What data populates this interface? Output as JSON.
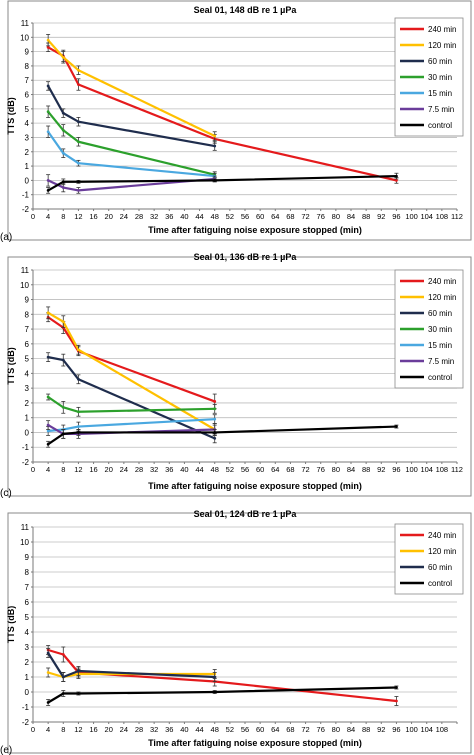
{
  "chart_data": [
    {
      "type": "line",
      "panel_label": "(a)",
      "title": "Seal 01, 148 dB re 1 µPa",
      "xlabel": "Time after fatiguing noise exposure stopped (min)",
      "ylabel": "TTS (dB)",
      "xlim": [
        0,
        112
      ],
      "ylim": [
        -2,
        11
      ],
      "xticks": [
        0,
        4,
        8,
        12,
        16,
        20,
        24,
        28,
        32,
        36,
        40,
        44,
        48,
        52,
        56,
        60,
        64,
        68,
        72,
        76,
        80,
        84,
        88,
        92,
        96,
        100,
        104,
        108,
        112
      ],
      "xtick_labels": [
        "0",
        "4",
        "8",
        "12",
        "16",
        "20",
        "24",
        "28",
        "32",
        "36",
        "40",
        "44",
        "48",
        "52",
        "56",
        "60",
        "64",
        "68",
        "72",
        "76",
        "80",
        "84",
        "88",
        "92",
        "96",
        "100",
        "104",
        "108",
        "112"
      ],
      "yticks": [
        -2,
        -1,
        0,
        1,
        2,
        3,
        4,
        5,
        6,
        7,
        8,
        9,
        10,
        11
      ],
      "grid": true,
      "legend_position": "top-right",
      "series": [
        {
          "name": "240 min",
          "color": "#e41a1c",
          "x": [
            4,
            8,
            12,
            48,
            96
          ],
          "y": [
            9.3,
            8.7,
            6.7,
            2.9,
            0.0
          ],
          "err": [
            0.3,
            0.4,
            0.4,
            0.3,
            0.2
          ]
        },
        {
          "name": "120 min",
          "color": "#ffc000",
          "x": [
            4,
            8,
            12,
            48
          ],
          "y": [
            9.8,
            8.6,
            7.7,
            3.1
          ],
          "err": [
            0.4,
            0.4,
            0.3,
            0.3
          ]
        },
        {
          "name": "60 min",
          "color": "#1f2d4d",
          "x": [
            4,
            8,
            12,
            48
          ],
          "y": [
            6.6,
            4.7,
            4.1,
            2.4
          ],
          "err": [
            0.3,
            0.3,
            0.3,
            0.3
          ]
        },
        {
          "name": "30 min",
          "color": "#2ca02c",
          "x": [
            4,
            8,
            12,
            48
          ],
          "y": [
            4.8,
            3.5,
            2.7,
            0.4
          ],
          "err": [
            0.4,
            0.4,
            0.3,
            0.2
          ]
        },
        {
          "name": "15 min",
          "color": "#4aa8e0",
          "x": [
            4,
            8,
            12,
            48
          ],
          "y": [
            3.4,
            1.9,
            1.2,
            0.3
          ],
          "err": [
            0.4,
            0.3,
            0.2,
            0.2
          ]
        },
        {
          "name": "7.5 min",
          "color": "#6a3d9a",
          "x": [
            4,
            8,
            12,
            48
          ],
          "y": [
            0.0,
            -0.5,
            -0.7,
            0.1
          ],
          "err": [
            0.4,
            0.3,
            0.2,
            0.2
          ]
        },
        {
          "name": "control",
          "color": "#000000",
          "x": [
            4,
            8,
            12,
            48,
            96
          ],
          "y": [
            -0.7,
            -0.1,
            -0.1,
            0.0,
            0.3
          ],
          "err": [
            0.2,
            0.2,
            0.1,
            0.1,
            0.2
          ]
        }
      ]
    },
    {
      "type": "line",
      "panel_label": "(c)",
      "title": "Seal 01, 136 dB re 1 µPa",
      "xlabel": "Time after fatiguing noise exposure stopped (min)",
      "ylabel": "TTS (dB)",
      "xlim": [
        0,
        112
      ],
      "ylim": [
        -2,
        11
      ],
      "xticks": [
        0,
        4,
        8,
        12,
        16,
        20,
        24,
        28,
        32,
        36,
        40,
        44,
        48,
        52,
        56,
        60,
        64,
        68,
        72,
        76,
        80,
        84,
        88,
        92,
        96,
        100,
        104,
        108,
        112
      ],
      "xtick_labels": [
        "0",
        "4",
        "8",
        "12",
        "16",
        "20",
        "24",
        "28",
        "32",
        "36",
        "40",
        "44",
        "48",
        "52",
        "56",
        "60",
        "64",
        "68",
        "72",
        "76",
        "80",
        "84",
        "88",
        "92",
        "96",
        "100",
        "104",
        "108",
        "112"
      ],
      "yticks": [
        -2,
        -1,
        0,
        1,
        2,
        3,
        4,
        5,
        6,
        7,
        8,
        9,
        10,
        11
      ],
      "grid": true,
      "legend_position": "top-right",
      "series": [
        {
          "name": "240 min",
          "color": "#e41a1c",
          "x": [
            4,
            8,
            12,
            48
          ],
          "y": [
            7.8,
            7.1,
            5.5,
            2.1
          ],
          "err": [
            0.3,
            0.4,
            0.3,
            0.5
          ]
        },
        {
          "name": "120 min",
          "color": "#ffc000",
          "x": [
            4,
            8,
            12,
            48
          ],
          "y": [
            8.1,
            7.5,
            5.6,
            0.2
          ],
          "err": [
            0.4,
            0.4,
            0.3,
            0.4
          ]
        },
        {
          "name": "60 min",
          "color": "#1f2d4d",
          "x": [
            4,
            8,
            12,
            48
          ],
          "y": [
            5.1,
            4.9,
            3.6,
            -0.4
          ],
          "err": [
            0.3,
            0.4,
            0.3,
            0.3
          ]
        },
        {
          "name": "30 min",
          "color": "#2ca02c",
          "x": [
            4,
            8,
            12,
            48
          ],
          "y": [
            2.4,
            1.7,
            1.4,
            1.6
          ],
          "err": [
            0.2,
            0.4,
            0.3,
            0.3
          ]
        },
        {
          "name": "15 min",
          "color": "#4aa8e0",
          "x": [
            4,
            8,
            12,
            48
          ],
          "y": [
            0.1,
            0.2,
            0.4,
            0.9
          ],
          "err": [
            0.3,
            0.3,
            0.3,
            0.3
          ]
        },
        {
          "name": "7.5 min",
          "color": "#6a3d9a",
          "x": [
            4,
            8,
            12,
            48
          ],
          "y": [
            0.5,
            -0.1,
            -0.1,
            0.2
          ],
          "err": [
            0.3,
            0.3,
            0.3,
            0.3
          ]
        },
        {
          "name": "control",
          "color": "#000000",
          "x": [
            4,
            8,
            12,
            48,
            96
          ],
          "y": [
            -0.8,
            -0.1,
            0.0,
            0.0,
            0.4
          ],
          "err": [
            0.2,
            0.3,
            0.2,
            0.2,
            0.1
          ]
        }
      ]
    },
    {
      "type": "line",
      "panel_label": "(e)",
      "title": "Seal 01, 124 dB re 1 µPa",
      "xlabel": "Time after fatiguing noise exposure stopped (min)",
      "ylabel": "TTS (dB)",
      "xlim": [
        0,
        112
      ],
      "ylim": [
        -2,
        11
      ],
      "xticks": [
        0,
        4,
        8,
        12,
        16,
        20,
        24,
        28,
        32,
        36,
        40,
        44,
        48,
        52,
        56,
        60,
        64,
        68,
        72,
        76,
        80,
        84,
        88,
        92,
        96,
        100,
        104,
        108,
        112
      ],
      "xtick_labels": [
        "0",
        "4",
        "8",
        "12",
        "16",
        "20",
        "24",
        "28",
        "32",
        "36",
        "40",
        "44",
        "48",
        "52",
        "56",
        "60",
        "64",
        "68",
        "72",
        "76",
        "80",
        "84",
        "88",
        "92",
        "96",
        "100",
        "104",
        "108",
        ""
      ],
      "yticks": [
        -2,
        -1,
        0,
        1,
        2,
        3,
        4,
        5,
        6,
        7,
        8,
        9,
        10,
        11
      ],
      "grid": true,
      "legend_position": "top-right",
      "series": [
        {
          "name": "240 min",
          "color": "#e41a1c",
          "x": [
            4,
            8,
            12,
            48,
            96
          ],
          "y": [
            2.8,
            2.5,
            1.3,
            0.7,
            -0.6
          ],
          "err": [
            0.3,
            0.5,
            0.3,
            0.3,
            0.3
          ]
        },
        {
          "name": "120 min",
          "color": "#ffc000",
          "x": [
            4,
            8,
            12,
            48
          ],
          "y": [
            1.3,
            1.0,
            1.2,
            1.2
          ],
          "err": [
            0.3,
            0.3,
            0.3,
            0.3
          ]
        },
        {
          "name": "60 min",
          "color": "#1f2d4d",
          "x": [
            4,
            8,
            12,
            48
          ],
          "y": [
            2.6,
            1.0,
            1.4,
            1.0
          ],
          "err": [
            0.3,
            0.3,
            0.3,
            0.3
          ]
        },
        {
          "name": "control",
          "color": "#000000",
          "x": [
            4,
            8,
            12,
            48,
            96
          ],
          "y": [
            -0.7,
            -0.1,
            -0.1,
            0.0,
            0.3
          ],
          "err": [
            0.2,
            0.2,
            0.1,
            0.1,
            0.1
          ]
        }
      ]
    }
  ]
}
